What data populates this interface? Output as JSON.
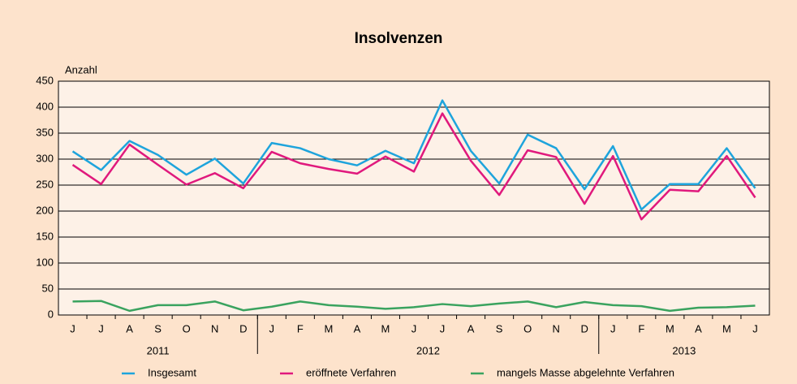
{
  "chart_data": {
    "type": "line",
    "title": "Insolvenzen",
    "y_label": "Anzahl",
    "category_groups": [
      {
        "label": "2011",
        "categories": [
          "J",
          "J",
          "A",
          "S",
          "O",
          "N",
          "D"
        ]
      },
      {
        "label": "2012",
        "categories": [
          "J",
          "F",
          "M",
          "A",
          "M",
          "J",
          "J",
          "A",
          "S",
          "O",
          "N",
          "D"
        ]
      },
      {
        "label": "2013",
        "categories": [
          "J",
          "F",
          "M",
          "A",
          "M",
          "J"
        ]
      }
    ],
    "series": [
      {
        "name": "Insgesamt",
        "color": "#1ea4dc",
        "values": [
          315,
          279,
          335,
          308,
          270,
          301,
          253,
          331,
          321,
          300,
          288,
          316,
          292,
          413,
          316,
          253,
          347,
          321,
          242,
          325,
          203,
          252,
          252,
          321,
          244
        ]
      },
      {
        "name": "eröffnete Verfahren",
        "color": "#e0197d",
        "values": [
          289,
          252,
          328,
          289,
          251,
          273,
          244,
          314,
          292,
          281,
          272,
          305,
          276,
          388,
          297,
          231,
          317,
          304,
          214,
          306,
          184,
          241,
          238,
          306,
          226
        ]
      },
      {
        "name": "mangels Masse abgelehnte Verfahren",
        "color": "#3aa35f",
        "values": [
          26,
          27,
          8,
          19,
          19,
          26,
          9,
          16,
          26,
          19,
          16,
          12,
          15,
          21,
          17,
          22,
          26,
          15,
          25,
          19,
          17,
          8,
          14,
          15,
          18
        ]
      }
    ],
    "ylim": [
      0,
      450
    ],
    "yticks": [
      0,
      50,
      100,
      150,
      200,
      250,
      300,
      350,
      400,
      450
    ],
    "grid": true
  }
}
